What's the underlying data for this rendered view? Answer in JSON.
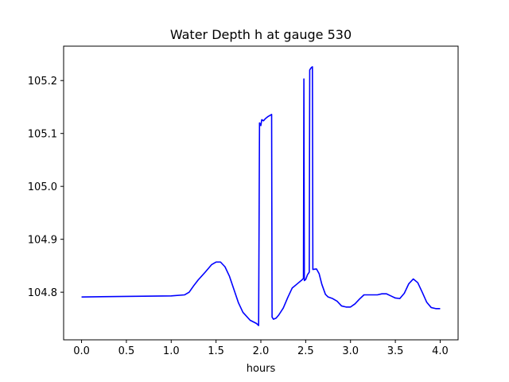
{
  "chart_data": {
    "type": "line",
    "title": "Water Depth h at gauge 530",
    "xlabel": "hours",
    "ylabel": "",
    "xlim": [
      -0.2,
      4.2
    ],
    "ylim": [
      104.71,
      105.265
    ],
    "x_ticks": [
      0.0,
      0.5,
      1.0,
      1.5,
      2.0,
      2.5,
      3.0,
      3.5,
      4.0
    ],
    "x_tick_labels": [
      "0.0",
      "0.5",
      "1.0",
      "1.5",
      "2.0",
      "2.5",
      "3.0",
      "3.5",
      "4.0"
    ],
    "y_ticks": [
      104.8,
      104.9,
      105.0,
      105.1,
      105.2
    ],
    "y_tick_labels": [
      "104.8",
      "104.9",
      "105.0",
      "105.1",
      "105.2"
    ],
    "grid": false,
    "series": [
      {
        "color": "#0000ff",
        "x": [
          0.0,
          0.5,
          1.0,
          1.15,
          1.2,
          1.25,
          1.3,
          1.38,
          1.45,
          1.5,
          1.55,
          1.6,
          1.65,
          1.7,
          1.75,
          1.8,
          1.88,
          1.95,
          1.97,
          1.975,
          1.985,
          2.0,
          2.01,
          2.03,
          2.05,
          2.08,
          2.12,
          2.125,
          2.14,
          2.17,
          2.2,
          2.25,
          2.3,
          2.35,
          2.4,
          2.45,
          2.475,
          2.48,
          2.485,
          2.5,
          2.52,
          2.54,
          2.545,
          2.56,
          2.575,
          2.58,
          2.62,
          2.65,
          2.68,
          2.72,
          2.75,
          2.8,
          2.85,
          2.9,
          2.95,
          3.0,
          3.05,
          3.1,
          3.15,
          3.2,
          3.25,
          3.3,
          3.35,
          3.4,
          3.45,
          3.5,
          3.55,
          3.6,
          3.65,
          3.7,
          3.75,
          3.8,
          3.85,
          3.9,
          3.95,
          4.0
        ],
        "y": [
          104.791,
          104.792,
          104.793,
          104.795,
          104.8,
          104.812,
          104.823,
          104.838,
          104.852,
          104.857,
          104.857,
          104.848,
          104.83,
          104.805,
          104.78,
          104.762,
          104.747,
          104.741,
          104.738,
          104.737,
          105.12,
          105.115,
          105.126,
          105.124,
          105.128,
          105.132,
          105.136,
          104.753,
          104.749,
          104.751,
          104.757,
          104.77,
          104.79,
          104.808,
          104.815,
          104.822,
          104.826,
          105.203,
          104.822,
          104.824,
          104.833,
          104.838,
          105.22,
          105.224,
          105.226,
          104.843,
          104.844,
          104.835,
          104.815,
          104.796,
          104.791,
          104.788,
          104.783,
          104.774,
          104.772,
          104.772,
          104.778,
          104.787,
          104.795,
          104.795,
          104.795,
          104.795,
          104.797,
          104.797,
          104.793,
          104.789,
          104.788,
          104.798,
          104.816,
          104.825,
          104.818,
          104.8,
          104.781,
          104.771,
          104.769,
          104.769
        ]
      }
    ]
  }
}
